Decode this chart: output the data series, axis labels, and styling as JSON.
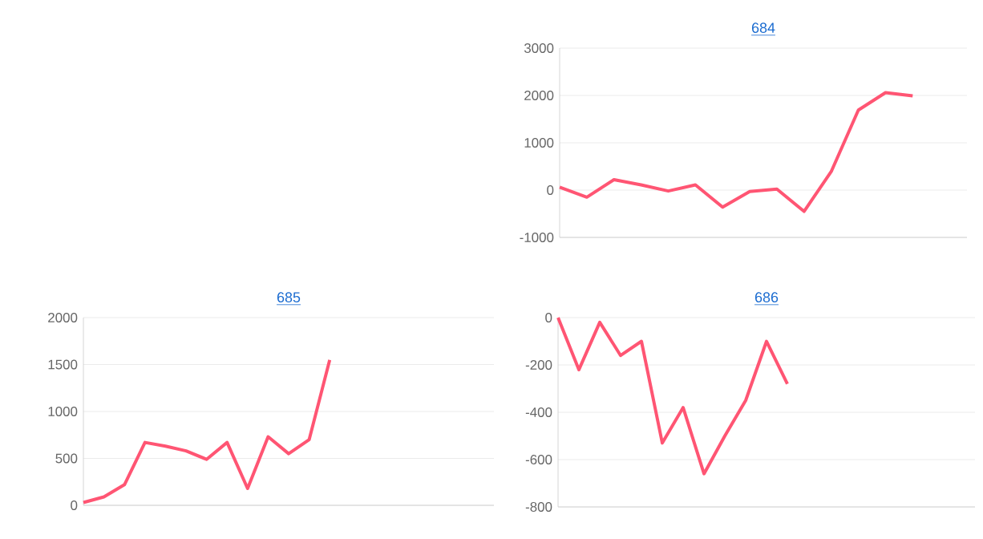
{
  "chart_data": [
    {
      "type": "line",
      "title": "684",
      "categories": [
        null,
        null,
        null,
        null,
        null,
        null,
        null,
        null,
        null,
        null,
        null,
        null,
        null,
        null,
        null,
        null
      ],
      "values": [
        60,
        -150,
        220,
        110,
        -20,
        110,
        -360,
        -30,
        20,
        -450,
        390,
        1690,
        2060,
        1990,
        null,
        null
      ],
      "color": "#ff5573",
      "ylim": [
        -1000,
        3000
      ],
      "yticks": [
        -1000,
        0,
        1000,
        2000,
        3000
      ],
      "grid": "y",
      "tick_labels": "y"
    },
    {
      "type": "line",
      "title": "685",
      "categories": [
        null,
        null,
        null,
        null,
        null,
        null,
        null,
        null,
        null,
        null,
        null,
        null,
        null,
        null,
        null,
        null,
        null,
        null,
        null,
        null,
        null
      ],
      "values": [
        30,
        90,
        220,
        670,
        630,
        580,
        490,
        670,
        180,
        730,
        550,
        700,
        1550,
        null,
        null,
        null,
        null,
        null,
        null,
        null,
        null
      ],
      "color": "#ff5573",
      "ylim": [
        0,
        2000
      ],
      "yticks": [
        0,
        500,
        1000,
        1500,
        2000
      ],
      "grid": "y",
      "tick_labels": "y"
    },
    {
      "type": "line",
      "title": "686",
      "categories": [
        null,
        null,
        null,
        null,
        null,
        null,
        null,
        null,
        null,
        null,
        null,
        null,
        null,
        null,
        null,
        null,
        null,
        null,
        null,
        null,
        null
      ],
      "values": [
        0,
        -220,
        -20,
        -160,
        -100,
        -530,
        -380,
        -660,
        -500,
        -350,
        -100,
        -280,
        null,
        null,
        null,
        null,
        null,
        null,
        null,
        null,
        null
      ],
      "color": "#ff5573",
      "ylim": [
        -800,
        0
      ],
      "yticks": [
        -800,
        -600,
        -400,
        -200,
        0
      ],
      "grid": "y",
      "tick_labels": "y"
    }
  ]
}
